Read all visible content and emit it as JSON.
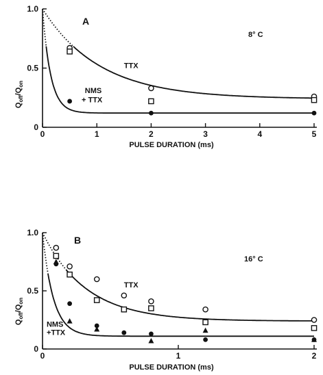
{
  "chart_data": [
    {
      "type": "scatter",
      "panel": "A",
      "temperature_label": "8° C",
      "xlabel": "PULSE DURATION (ms)",
      "ylabel": "Q",
      "ylabel_sub": "off",
      "ylabel_sep": "/Q",
      "ylabel_sub2": "on",
      "xlim": [
        0,
        5
      ],
      "ylim": [
        0,
        1
      ],
      "xticks": [
        0,
        1,
        2,
        3,
        4,
        5
      ],
      "xtick_labels": [
        "0",
        "1",
        "2",
        "3",
        "4",
        "5"
      ],
      "yticks": [
        0,
        0.5,
        1
      ],
      "ytick_labels": [
        "0",
        "0.5",
        "1.0"
      ],
      "annotations": [
        {
          "text": "TTX",
          "x": 1.5,
          "y": 0.5
        },
        {
          "text": "NMS",
          "x": 0.78,
          "y": 0.29
        },
        {
          "text": "+ TTX",
          "x": 0.72,
          "y": 0.21
        }
      ],
      "series": [
        {
          "label": "TTX",
          "marker": "circle-open",
          "points": [
            [
              0.5,
              0.67
            ],
            [
              2,
              0.33
            ],
            [
              5,
              0.26
            ]
          ],
          "fit": {
            "a": 0.76,
            "tau": 1.05,
            "c": 0.24
          }
        },
        {
          "label": "TTX",
          "marker": "square-open",
          "points": [
            [
              0.5,
              0.64
            ],
            [
              2,
              0.22
            ],
            [
              5,
              0.23
            ]
          ]
        },
        {
          "label": "NMS + TTX",
          "marker": "circle-filled",
          "points": [
            [
              0.5,
              0.22
            ],
            [
              2,
              0.12
            ],
            [
              5,
              0.12
            ]
          ],
          "fit": {
            "a": 0.88,
            "tau": 0.15,
            "c": 0.12
          }
        }
      ]
    },
    {
      "type": "scatter",
      "panel": "B",
      "temperature_label": "16° C",
      "xlabel": "PULSE DURATION (ms)",
      "ylabel": "Q",
      "ylabel_sub": "off",
      "ylabel_sep": "/Q",
      "ylabel_sub2": "on",
      "xlim": [
        0,
        2
      ],
      "ylim": [
        0,
        1
      ],
      "xticks": [
        0,
        1,
        2
      ],
      "xtick_labels": [
        "0",
        "1",
        "2"
      ],
      "yticks": [
        0,
        0.5,
        1
      ],
      "ytick_labels": [
        "0",
        "0.5",
        "1.0"
      ],
      "annotations": [
        {
          "text": "TTX",
          "x": 0.6,
          "y": 0.53
        },
        {
          "text": "NMS",
          "x": 0.03,
          "y": 0.19
        },
        {
          "text": "+TTX",
          "x": 0.03,
          "y": 0.12
        }
      ],
      "series": [
        {
          "label": "TTX",
          "marker": "circle-open",
          "points": [
            [
              0.1,
              0.87
            ],
            [
              0.2,
              0.71
            ],
            [
              0.4,
              0.6
            ],
            [
              0.6,
              0.46
            ],
            [
              0.8,
              0.41
            ],
            [
              1.2,
              0.34
            ],
            [
              2,
              0.25
            ]
          ],
          "fit": {
            "a": 0.76,
            "tau": 0.32,
            "c": 0.24
          }
        },
        {
          "label": "TTX",
          "marker": "square-open",
          "points": [
            [
              0.1,
              0.8
            ],
            [
              0.2,
              0.64
            ],
            [
              0.4,
              0.42
            ],
            [
              0.6,
              0.34
            ],
            [
              0.8,
              0.35
            ],
            [
              1.2,
              0.23
            ],
            [
              2,
              0.18
            ]
          ]
        },
        {
          "label": "NMS + TTX",
          "marker": "circle-filled",
          "points": [
            [
              0.1,
              0.73
            ],
            [
              0.2,
              0.39
            ],
            [
              0.4,
              0.2
            ],
            [
              0.6,
              0.14
            ],
            [
              0.8,
              0.13
            ],
            [
              1.2,
              0.08
            ],
            [
              2,
              0.08
            ]
          ],
          "fit": {
            "a": 0.89,
            "tau": 0.08,
            "c": 0.11
          }
        },
        {
          "label": "NMS + TTX",
          "marker": "triangle-filled",
          "points": [
            [
              0.1,
              0.75
            ],
            [
              0.2,
              0.24
            ],
            [
              0.4,
              0.17
            ],
            [
              0.8,
              0.07
            ],
            [
              1.2,
              0.16
            ],
            [
              2,
              0.08
            ]
          ]
        }
      ]
    }
  ]
}
